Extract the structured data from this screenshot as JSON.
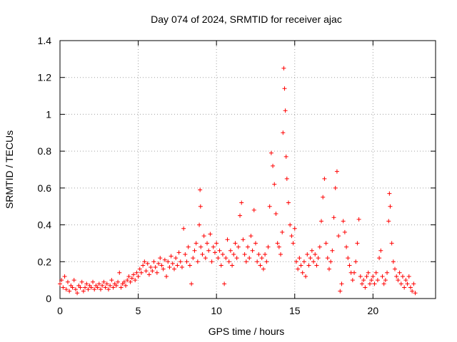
{
  "chart_data": {
    "type": "scatter",
    "title": "Day 074 of 2024, SRMTID for receiver ajac",
    "xlabel": "GPS time / hours",
    "ylabel": "SRMTID / TECUs",
    "xlim": [
      0,
      24
    ],
    "ylim": [
      0,
      1.4
    ],
    "x_ticks": [
      0,
      5,
      10,
      15,
      20
    ],
    "y_ticks": [
      0,
      0.2,
      0.4,
      0.6,
      0.8,
      1,
      1.2,
      1.4
    ],
    "x_tick_labels": [
      "0",
      "5",
      "10",
      "15",
      "20"
    ],
    "y_tick_labels": [
      "0",
      "0.2",
      "0.4",
      "0.6",
      "0.8",
      "1",
      "1.2",
      "1.4"
    ],
    "grid": true,
    "marker": "+",
    "color": "#ff0000",
    "series": [
      {
        "name": "SRMTID",
        "points": [
          [
            0.0,
            0.08
          ],
          [
            0.1,
            0.1
          ],
          [
            0.2,
            0.06
          ],
          [
            0.3,
            0.12
          ],
          [
            0.4,
            0.05
          ],
          [
            0.5,
            0.09
          ],
          [
            0.6,
            0.04
          ],
          [
            0.7,
            0.07
          ],
          [
            0.8,
            0.06
          ],
          [
            0.9,
            0.1
          ],
          [
            1.0,
            0.05
          ],
          [
            1.1,
            0.03
          ],
          [
            1.2,
            0.07
          ],
          [
            1.3,
            0.06
          ],
          [
            1.4,
            0.09
          ],
          [
            1.5,
            0.04
          ],
          [
            1.6,
            0.06
          ],
          [
            1.7,
            0.08
          ],
          [
            1.8,
            0.05
          ],
          [
            1.9,
            0.07
          ],
          [
            2.0,
            0.06
          ],
          [
            2.1,
            0.09
          ],
          [
            2.2,
            0.05
          ],
          [
            2.3,
            0.07
          ],
          [
            2.4,
            0.06
          ],
          [
            2.5,
            0.08
          ],
          [
            2.6,
            0.05
          ],
          [
            2.7,
            0.07
          ],
          [
            2.8,
            0.09
          ],
          [
            2.9,
            0.06
          ],
          [
            3.0,
            0.08
          ],
          [
            3.1,
            0.05
          ],
          [
            3.2,
            0.07
          ],
          [
            3.3,
            0.1
          ],
          [
            3.4,
            0.06
          ],
          [
            3.5,
            0.08
          ],
          [
            3.6,
            0.07
          ],
          [
            3.7,
            0.09
          ],
          [
            3.8,
            0.14
          ],
          [
            3.9,
            0.06
          ],
          [
            4.0,
            0.08
          ],
          [
            4.1,
            0.09
          ],
          [
            4.2,
            0.07
          ],
          [
            4.3,
            0.1
          ],
          [
            4.4,
            0.12
          ],
          [
            4.5,
            0.09
          ],
          [
            4.6,
            0.11
          ],
          [
            4.7,
            0.13
          ],
          [
            4.8,
            0.1
          ],
          [
            4.9,
            0.14
          ],
          [
            5.0,
            0.12
          ],
          [
            5.1,
            0.16
          ],
          [
            5.2,
            0.14
          ],
          [
            5.3,
            0.18
          ],
          [
            5.4,
            0.2
          ],
          [
            5.5,
            0.15
          ],
          [
            5.6,
            0.19
          ],
          [
            5.7,
            0.13
          ],
          [
            5.8,
            0.17
          ],
          [
            5.9,
            0.15
          ],
          [
            6.0,
            0.2
          ],
          [
            6.1,
            0.17
          ],
          [
            6.2,
            0.14
          ],
          [
            6.3,
            0.19
          ],
          [
            6.4,
            0.22
          ],
          [
            6.5,
            0.18
          ],
          [
            6.6,
            0.16
          ],
          [
            6.7,
            0.21
          ],
          [
            6.8,
            0.12
          ],
          [
            6.9,
            0.2
          ],
          [
            7.0,
            0.17
          ],
          [
            7.1,
            0.23
          ],
          [
            7.2,
            0.19
          ],
          [
            7.3,
            0.16
          ],
          [
            7.4,
            0.22
          ],
          [
            7.5,
            0.18
          ],
          [
            7.6,
            0.25
          ],
          [
            7.7,
            0.2
          ],
          [
            7.8,
            0.17
          ],
          [
            7.9,
            0.38
          ],
          [
            8.0,
            0.24
          ],
          [
            8.1,
            0.2
          ],
          [
            8.2,
            0.28
          ],
          [
            8.3,
            0.18
          ],
          [
            8.4,
            0.08
          ],
          [
            8.5,
            0.22
          ],
          [
            8.6,
            0.26
          ],
          [
            8.7,
            0.3
          ],
          [
            8.8,
            0.2
          ],
          [
            8.9,
            0.4
          ],
          [
            8.95,
            0.59
          ],
          [
            8.98,
            0.5
          ],
          [
            9.0,
            0.28
          ],
          [
            9.1,
            0.24
          ],
          [
            9.2,
            0.34
          ],
          [
            9.3,
            0.22
          ],
          [
            9.4,
            0.3
          ],
          [
            9.5,
            0.26
          ],
          [
            9.6,
            0.35
          ],
          [
            9.7,
            0.2
          ],
          [
            9.8,
            0.28
          ],
          [
            9.9,
            0.25
          ],
          [
            10.0,
            0.3
          ],
          [
            10.1,
            0.22
          ],
          [
            10.2,
            0.26
          ],
          [
            10.3,
            0.18
          ],
          [
            10.4,
            0.24
          ],
          [
            10.5,
            0.08
          ],
          [
            10.6,
            0.22
          ],
          [
            10.7,
            0.32
          ],
          [
            10.8,
            0.2
          ],
          [
            10.9,
            0.26
          ],
          [
            11.0,
            0.18
          ],
          [
            11.1,
            0.24
          ],
          [
            11.2,
            0.3
          ],
          [
            11.3,
            0.22
          ],
          [
            11.4,
            0.28
          ],
          [
            11.5,
            0.45
          ],
          [
            11.6,
            0.52
          ],
          [
            11.7,
            0.32
          ],
          [
            11.8,
            0.24
          ],
          [
            11.9,
            0.2
          ],
          [
            12.0,
            0.28
          ],
          [
            12.1,
            0.22
          ],
          [
            12.2,
            0.34
          ],
          [
            12.3,
            0.26
          ],
          [
            12.4,
            0.48
          ],
          [
            12.5,
            0.3
          ],
          [
            12.6,
            0.2
          ],
          [
            12.7,
            0.24
          ],
          [
            12.8,
            0.18
          ],
          [
            12.9,
            0.22
          ],
          [
            13.0,
            0.16
          ],
          [
            13.1,
            0.24
          ],
          [
            13.2,
            0.2
          ],
          [
            13.3,
            0.28
          ],
          [
            13.4,
            0.5
          ],
          [
            13.5,
            0.79
          ],
          [
            13.6,
            0.72
          ],
          [
            13.7,
            0.62
          ],
          [
            13.8,
            0.46
          ],
          [
            13.9,
            0.3
          ],
          [
            14.0,
            0.28
          ],
          [
            14.1,
            0.24
          ],
          [
            14.2,
            0.36
          ],
          [
            14.25,
            0.9
          ],
          [
            14.3,
            1.25
          ],
          [
            14.35,
            1.14
          ],
          [
            14.4,
            1.02
          ],
          [
            14.45,
            0.77
          ],
          [
            14.5,
            0.65
          ],
          [
            14.6,
            0.52
          ],
          [
            14.7,
            0.4
          ],
          [
            14.8,
            0.34
          ],
          [
            14.9,
            0.3
          ],
          [
            15.0,
            0.38
          ],
          [
            15.1,
            0.2
          ],
          [
            15.2,
            0.16
          ],
          [
            15.3,
            0.22
          ],
          [
            15.4,
            0.18
          ],
          [
            15.5,
            0.14
          ],
          [
            15.6,
            0.2
          ],
          [
            15.7,
            0.12
          ],
          [
            15.8,
            0.24
          ],
          [
            15.9,
            0.18
          ],
          [
            16.0,
            0.22
          ],
          [
            16.1,
            0.26
          ],
          [
            16.2,
            0.2
          ],
          [
            16.3,
            0.24
          ],
          [
            16.4,
            0.18
          ],
          [
            16.5,
            0.22
          ],
          [
            16.6,
            0.28
          ],
          [
            16.7,
            0.42
          ],
          [
            16.8,
            0.55
          ],
          [
            16.9,
            0.65
          ],
          [
            17.0,
            0.3
          ],
          [
            17.1,
            0.22
          ],
          [
            17.2,
            0.16
          ],
          [
            17.3,
            0.2
          ],
          [
            17.4,
            0.26
          ],
          [
            17.5,
            0.44
          ],
          [
            17.6,
            0.6
          ],
          [
            17.7,
            0.69
          ],
          [
            17.8,
            0.34
          ],
          [
            17.9,
            0.04
          ],
          [
            18.0,
            0.08
          ],
          [
            18.1,
            0.42
          ],
          [
            18.2,
            0.36
          ],
          [
            18.3,
            0.28
          ],
          [
            18.4,
            0.22
          ],
          [
            18.5,
            0.18
          ],
          [
            18.6,
            0.14
          ],
          [
            18.7,
            0.1
          ],
          [
            18.8,
            0.14
          ],
          [
            18.9,
            0.2
          ],
          [
            19.0,
            0.3
          ],
          [
            19.1,
            0.43
          ],
          [
            19.2,
            0.12
          ],
          [
            19.3,
            0.08
          ],
          [
            19.4,
            0.1
          ],
          [
            19.5,
            0.06
          ],
          [
            19.6,
            0.12
          ],
          [
            19.7,
            0.14
          ],
          [
            19.8,
            0.08
          ],
          [
            19.9,
            0.1
          ],
          [
            20.0,
            0.12
          ],
          [
            20.1,
            0.08
          ],
          [
            20.2,
            0.14
          ],
          [
            20.3,
            0.1
          ],
          [
            20.4,
            0.22
          ],
          [
            20.5,
            0.26
          ],
          [
            20.6,
            0.12
          ],
          [
            20.7,
            0.08
          ],
          [
            20.8,
            0.1
          ],
          [
            20.9,
            0.14
          ],
          [
            21.0,
            0.42
          ],
          [
            21.05,
            0.57
          ],
          [
            21.1,
            0.5
          ],
          [
            21.2,
            0.3
          ],
          [
            21.3,
            0.2
          ],
          [
            21.4,
            0.16
          ],
          [
            21.5,
            0.12
          ],
          [
            21.6,
            0.1
          ],
          [
            21.7,
            0.14
          ],
          [
            21.8,
            0.08
          ],
          [
            21.9,
            0.12
          ],
          [
            22.0,
            0.06
          ],
          [
            22.1,
            0.1
          ],
          [
            22.2,
            0.08
          ],
          [
            22.3,
            0.12
          ],
          [
            22.4,
            0.06
          ],
          [
            22.5,
            0.04
          ],
          [
            22.6,
            0.08
          ],
          [
            22.7,
            0.03
          ]
        ]
      }
    ]
  }
}
